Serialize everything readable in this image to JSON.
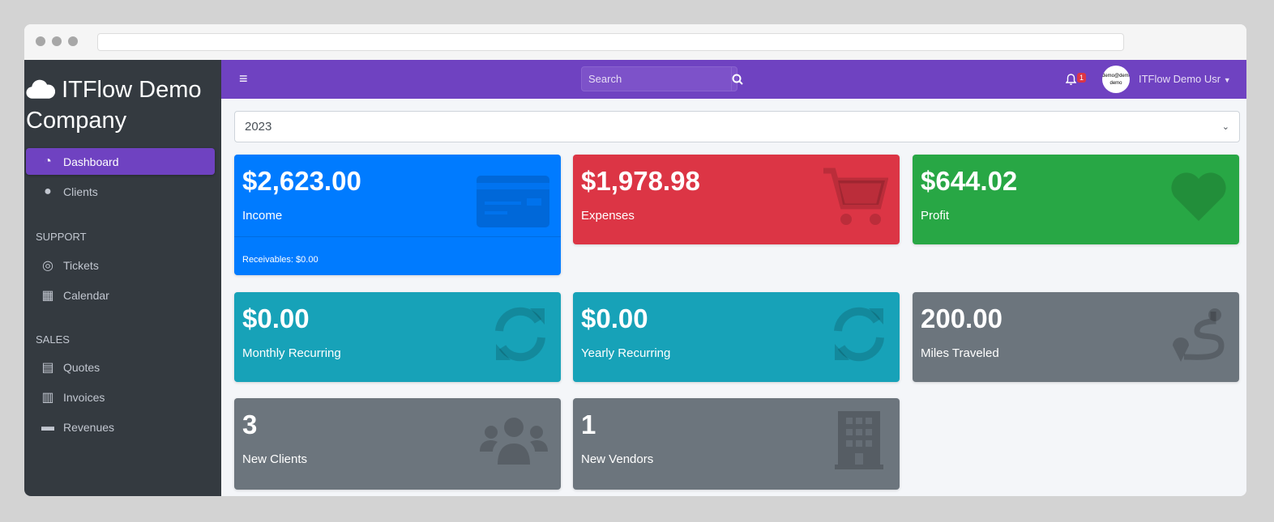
{
  "brand": {
    "name": "ITFlow Demo Company"
  },
  "sidebar": {
    "items": [
      {
        "label": "Dashboard",
        "icon": "tachometer-icon",
        "active": true
      },
      {
        "label": "Clients",
        "icon": "users-icon"
      }
    ],
    "support_header": "SUPPORT",
    "support": [
      {
        "label": "Tickets",
        "icon": "life-ring-icon"
      },
      {
        "label": "Calendar",
        "icon": "calendar-icon"
      }
    ],
    "sales_header": "SALES",
    "sales": [
      {
        "label": "Quotes",
        "icon": "file-icon"
      },
      {
        "label": "Invoices",
        "icon": "file-invoice-icon"
      },
      {
        "label": "Revenues",
        "icon": "credit-card-icon"
      }
    ]
  },
  "topbar": {
    "search_placeholder": "Search",
    "notification_count": "1",
    "avatar_text": "demo@demo demo",
    "user_name": "ITFlow Demo Usr"
  },
  "year_select": {
    "value": "2023"
  },
  "cards": [
    {
      "value": "$2,623.00",
      "label": "Income",
      "footer": "Receivables: $0.00",
      "color": "#007bff"
    },
    {
      "value": "$1,978.98",
      "label": "Expenses",
      "color": "#dc3545"
    },
    {
      "value": "$644.02",
      "label": "Profit",
      "color": "#28a745"
    },
    {
      "value": "$0.00",
      "label": "Monthly Recurring",
      "color": "#17a2b8"
    },
    {
      "value": "$0.00",
      "label": "Yearly Recurring",
      "color": "#17a2b8"
    },
    {
      "value": "200.00",
      "label": "Miles Traveled",
      "color": "#6c757d"
    },
    {
      "value": "3",
      "label": "New Clients",
      "color": "#6c757d"
    },
    {
      "value": "1",
      "label": "New Vendors",
      "color": "#6c757d"
    }
  ]
}
